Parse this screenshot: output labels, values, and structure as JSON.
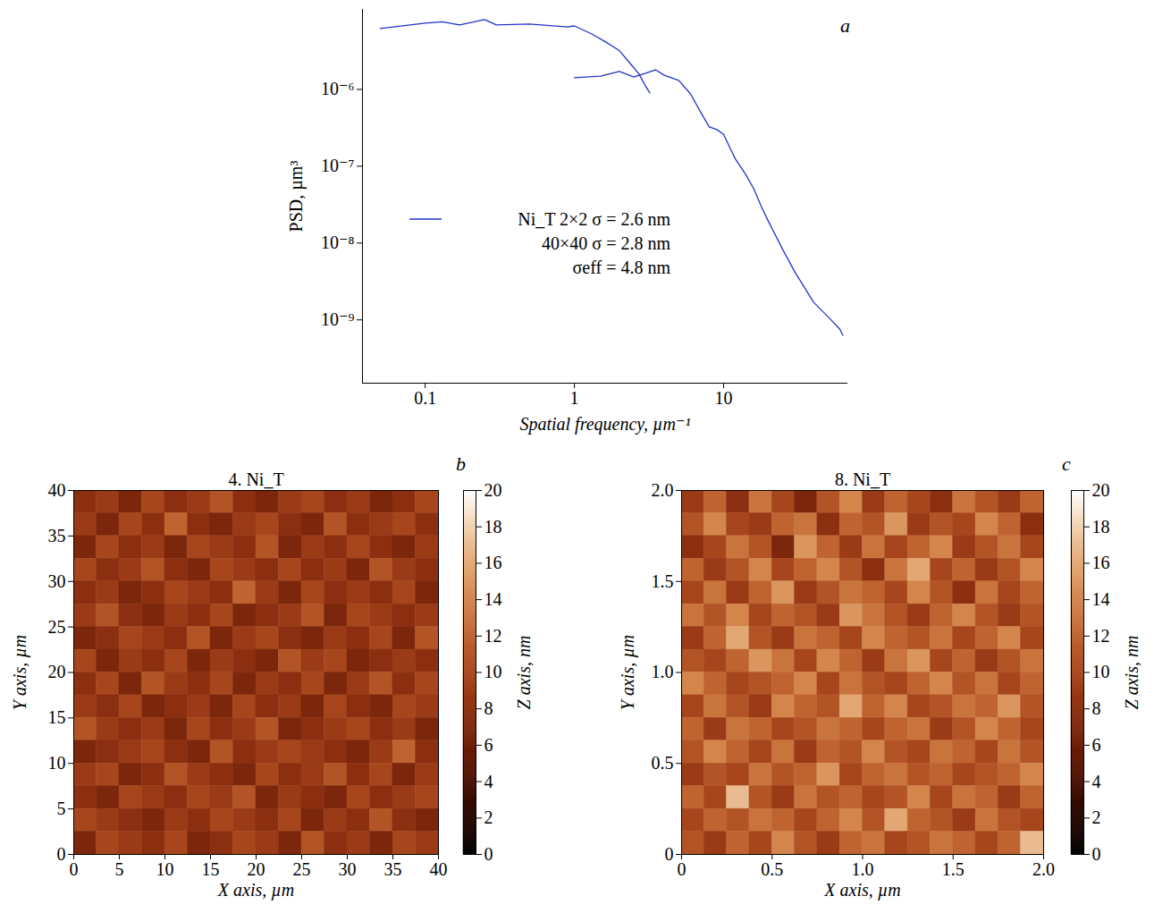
{
  "chart_data": [
    {
      "type": "line",
      "panel_label": "a",
      "x_label": "Spatial frequency, µm⁻¹",
      "y_label": "PSD, µm³",
      "log": true,
      "legend": "left",
      "xlim": [
        0.038,
        68
      ],
      "ylim": [
        1.5e-10,
        1.1e-05
      ],
      "xticks": [
        0.1,
        1,
        10
      ],
      "yticks": [
        {
          "value": 1e-09,
          "label": "10⁻⁹"
        },
        {
          "value": 1e-08,
          "label": "10⁻⁸"
        },
        {
          "value": 1e-07,
          "label": "10⁻⁷"
        },
        {
          "value": 1e-06,
          "label": "10⁻⁶"
        }
      ],
      "series": [
        {
          "name": "Ni_T 2×2 σ = 2.6 nm",
          "color": "#2233cc",
          "x": [
            1,
            1.5,
            2,
            2.5,
            3,
            3.5,
            4,
            5,
            6,
            7,
            8,
            9,
            10,
            11,
            12,
            14,
            16,
            18,
            20,
            25,
            30,
            35,
            40,
            50,
            60,
            63
          ],
          "values": [
            1.42e-06,
            1.49e-06,
            1.71e-06,
            1.45e-06,
            1.62e-06,
            1.8e-06,
            1.53e-06,
            1.31e-06,
            8.75e-07,
            5.1e-07,
            3.25e-07,
            3e-07,
            2.6e-07,
            1.75e-07,
            1.24e-07,
            7.9e-08,
            5e-08,
            2.9e-08,
            1.9e-08,
            8.1e-09,
            4.2e-09,
            2.6e-09,
            1.7e-09,
            1.1e-09,
            7.6e-10,
            6.3e-10
          ]
        },
        {
          "name": "40×40 σ = 2.8 nm",
          "color": "#2233cc",
          "x": [
            0.05,
            0.1,
            0.13,
            0.17,
            0.25,
            0.3,
            0.5,
            0.9,
            1,
            1.3,
            1.6,
            2,
            2.4,
            2.7,
            3,
            3.2
          ],
          "values": [
            6.2e-06,
            7.3e-06,
            7.6e-06,
            6.9e-06,
            8.1e-06,
            6.9e-06,
            7.1e-06,
            6.5e-06,
            6.7e-06,
            5.3e-06,
            4.2e-06,
            3.2e-06,
            2.1e-06,
            1.6e-06,
            1.1e-06,
            9e-07
          ]
        }
      ],
      "annotations": [
        "σeff = 4.8 nm"
      ]
    },
    {
      "type": "heatmap",
      "panel_label": "b",
      "title": "4. Ni_T",
      "x_label": "X axis, µm",
      "y_label": "Y axis, µm",
      "xlim": [
        0,
        40
      ],
      "ylim": [
        0,
        40
      ],
      "xticks": [
        0,
        5,
        10,
        15,
        20,
        25,
        30,
        35,
        40
      ],
      "yticks": [
        0,
        5,
        10,
        15,
        20,
        25,
        30,
        35,
        40
      ],
      "z": [
        [
          8,
          9,
          7,
          10,
          8,
          9,
          11,
          8,
          7,
          9,
          10,
          8,
          9,
          7,
          8,
          10
        ],
        [
          9,
          7,
          10,
          8,
          12,
          8,
          7,
          9,
          10,
          8,
          7,
          11,
          8,
          9,
          10,
          8
        ],
        [
          7,
          10,
          8,
          9,
          7,
          10,
          9,
          8,
          11,
          7,
          9,
          8,
          10,
          8,
          7,
          9
        ],
        [
          10,
          8,
          9,
          11,
          8,
          7,
          10,
          9,
          8,
          10,
          8,
          9,
          7,
          11,
          9,
          8
        ],
        [
          8,
          9,
          7,
          8,
          10,
          9,
          8,
          12,
          9,
          7,
          10,
          8,
          9,
          8,
          10,
          7
        ],
        [
          9,
          11,
          8,
          7,
          9,
          8,
          10,
          7,
          8,
          9,
          11,
          7,
          10,
          9,
          8,
          9
        ],
        [
          7,
          8,
          10,
          9,
          8,
          11,
          7,
          9,
          10,
          8,
          7,
          9,
          8,
          10,
          7,
          11
        ],
        [
          10,
          7,
          9,
          8,
          10,
          7,
          9,
          8,
          7,
          11,
          9,
          10,
          7,
          8,
          9,
          8
        ],
        [
          8,
          10,
          7,
          11,
          9,
          8,
          10,
          7,
          9,
          8,
          10,
          7,
          9,
          11,
          8,
          10
        ],
        [
          9,
          8,
          10,
          7,
          8,
          9,
          7,
          10,
          8,
          9,
          7,
          10,
          8,
          7,
          10,
          9
        ],
        [
          11,
          9,
          8,
          9,
          7,
          10,
          8,
          9,
          11,
          7,
          8,
          9,
          10,
          8,
          9,
          7
        ],
        [
          7,
          8,
          9,
          10,
          8,
          7,
          11,
          8,
          9,
          10,
          9,
          8,
          7,
          9,
          12,
          8
        ],
        [
          9,
          10,
          7,
          8,
          11,
          9,
          8,
          7,
          10,
          8,
          9,
          11,
          8,
          10,
          7,
          9
        ],
        [
          8,
          7,
          10,
          9,
          8,
          10,
          9,
          11,
          7,
          9,
          8,
          7,
          10,
          8,
          9,
          10
        ],
        [
          10,
          9,
          8,
          7,
          9,
          8,
          10,
          9,
          8,
          10,
          7,
          9,
          8,
          11,
          8,
          7
        ],
        [
          7,
          10,
          9,
          8,
          10,
          7,
          8,
          10,
          9,
          7,
          11,
          8,
          9,
          7,
          10,
          9
        ]
      ],
      "colorbar": {
        "label": "Z axis, nm",
        "range": [
          0,
          20
        ],
        "ticks": [
          0,
          2,
          4,
          6,
          8,
          10,
          12,
          14,
          16,
          18,
          20
        ]
      }
    },
    {
      "type": "heatmap",
      "panel_label": "c",
      "title": "8. Ni_T",
      "x_label": "X axis, µm",
      "y_label": "Y axis, µm",
      "xlim": [
        0,
        2
      ],
      "ylim": [
        0,
        2
      ],
      "xticks": [
        0,
        0.5,
        {
          "value": 1,
          "label": "1.0"
        },
        1.5,
        {
          "value": 2,
          "label": "2.0"
        }
      ],
      "yticks": [
        0,
        0.5,
        {
          "value": 1,
          "label": "1.0"
        },
        1.5,
        {
          "value": 2,
          "label": "2.0"
        }
      ],
      "z": [
        [
          9,
          12,
          8,
          13,
          10,
          7,
          11,
          14,
          9,
          12,
          10,
          8,
          13,
          11,
          9,
          12
        ],
        [
          11,
          14,
          10,
          9,
          12,
          13,
          8,
          12,
          11,
          15,
          9,
          11,
          10,
          14,
          12,
          8
        ],
        [
          8,
          10,
          13,
          11,
          7,
          15,
          12,
          9,
          13,
          10,
          12,
          14,
          9,
          11,
          13,
          10
        ],
        [
          12,
          9,
          11,
          14,
          10,
          12,
          14,
          11,
          8,
          13,
          16,
          10,
          12,
          9,
          11,
          14
        ],
        [
          10,
          13,
          9,
          12,
          15,
          9,
          11,
          13,
          12,
          10,
          14,
          11,
          8,
          13,
          10,
          12
        ],
        [
          13,
          11,
          14,
          10,
          12,
          11,
          9,
          15,
          13,
          11,
          9,
          12,
          14,
          11,
          9,
          11
        ],
        [
          9,
          12,
          16,
          11,
          9,
          13,
          12,
          10,
          14,
          12,
          11,
          13,
          10,
          12,
          14,
          10
        ],
        [
          11,
          10,
          12,
          15,
          13,
          10,
          14,
          12,
          9,
          13,
          15,
          10,
          12,
          9,
          11,
          13
        ],
        [
          14,
          12,
          10,
          11,
          12,
          14,
          10,
          13,
          11,
          10,
          12,
          14,
          11,
          13,
          10,
          12
        ],
        [
          10,
          13,
          11,
          9,
          14,
          12,
          11,
          16,
          12,
          14,
          10,
          11,
          13,
          12,
          15,
          11
        ],
        [
          12,
          9,
          13,
          12,
          10,
          11,
          13,
          12,
          10,
          12,
          13,
          9,
          11,
          14,
          12,
          10
        ],
        [
          11,
          14,
          12,
          10,
          13,
          9,
          12,
          11,
          14,
          11,
          10,
          13,
          12,
          10,
          13,
          11
        ],
        [
          9,
          11,
          10,
          13,
          11,
          12,
          15,
          10,
          12,
          13,
          11,
          12,
          10,
          11,
          12,
          14
        ],
        [
          12,
          10,
          17,
          11,
          9,
          13,
          11,
          12,
          10,
          11,
          14,
          10,
          13,
          12,
          9,
          12
        ],
        [
          10,
          12,
          11,
          13,
          12,
          10,
          12,
          14,
          11,
          16,
          12,
          11,
          9,
          13,
          11,
          10
        ],
        [
          11,
          9,
          12,
          10,
          14,
          11,
          9,
          12,
          13,
          10,
          11,
          13,
          12,
          10,
          12,
          17
        ]
      ],
      "colorbar": {
        "label": "Z axis, nm",
        "range": [
          0,
          20
        ],
        "ticks": [
          0,
          2,
          4,
          6,
          8,
          10,
          12,
          14,
          16,
          18,
          20
        ]
      }
    }
  ]
}
